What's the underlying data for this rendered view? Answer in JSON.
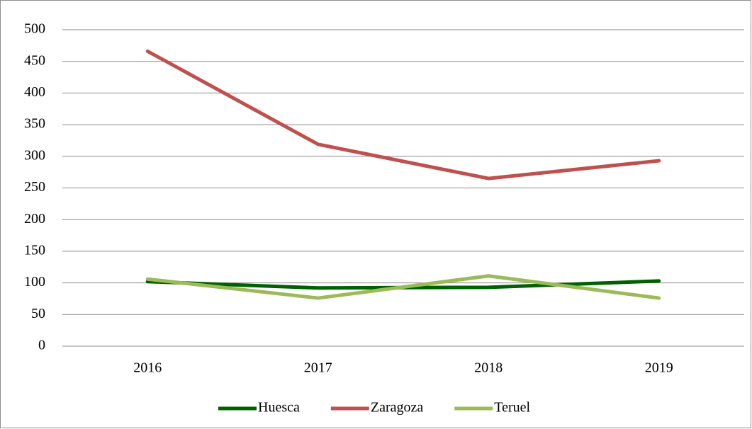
{
  "chart_data": {
    "type": "line",
    "categories": [
      "2016",
      "2017",
      "2018",
      "2019"
    ],
    "series": [
      {
        "name": "Huesca",
        "color": "#006100",
        "values": [
          102,
          92,
          93,
          103
        ]
      },
      {
        "name": "Zaragoza",
        "color": "#c0504d",
        "values": [
          466,
          319,
          265,
          293
        ]
      },
      {
        "name": "Teruel",
        "color": "#9bbb59",
        "values": [
          106,
          76,
          111,
          76
        ]
      }
    ],
    "ylim": [
      0,
      500
    ],
    "yticks": [
      0,
      50,
      100,
      150,
      200,
      250,
      300,
      350,
      400,
      450,
      500
    ],
    "grid": true,
    "legend": "bottom"
  }
}
